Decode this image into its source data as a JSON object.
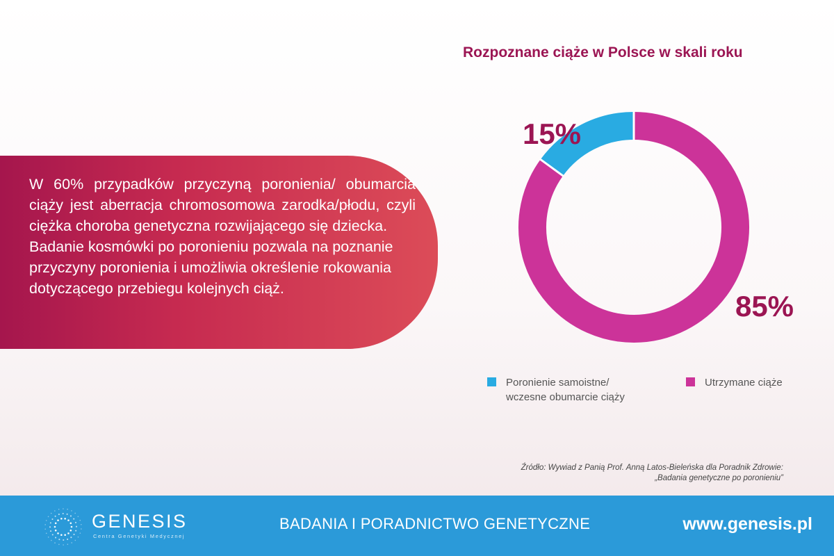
{
  "chart_data": {
    "type": "pie",
    "title": "Rozpoznane ciąże w Polsce w skali roku",
    "series": [
      {
        "name": "Poronienie samoistne/ wczesne obumarcie ciąży",
        "value": 15,
        "label": "15%",
        "color": "#29abe2"
      },
      {
        "name": "Utrzymane ciąże",
        "value": 85,
        "label": "85%",
        "color": "#cc3399"
      }
    ],
    "legend": "bottom"
  },
  "legend": {
    "items": [
      {
        "lines": [
          "Poronienie samoistne/",
          "wczesne obumarcie ciąży"
        ],
        "color": "#29abe2"
      },
      {
        "lines": [
          "Utrzymane ciąże"
        ],
        "color": "#cc3399"
      }
    ]
  },
  "info": {
    "paragraph1": "W 60% przypadków przyczyną poronienia/ obumarcia ciąży jest aberracja chromosomowa zarodka/płodu, czyli ciężka choroba genetyczna rozwijającego się dziecka.",
    "paragraph2": "Badanie kosmówki po poronieniu pozwala na poznanie przyczyny poronienia i umożliwia określenie rokowania dotyczącego przebiegu kolejnych ciąż."
  },
  "source": {
    "line1": "Źródło: Wywiad z Panią Prof. Anną Latos-Bieleńska dla Poradnik Zdrowie:",
    "line2": "„Badania genetyczne po poronieniu”"
  },
  "footer": {
    "logo_name": "GENESIS",
    "logo_tagline": "Centra Genetyki Medycznej",
    "slogan": "BADANIA I PORADNICTWO GENETYCZNE",
    "url": "www.genesis.pl"
  },
  "colors": {
    "title": "#9b1553",
    "footer_bg": "#2b9ad9",
    "panel_gradient": [
      "#a5164d",
      "#dc4c58"
    ]
  }
}
